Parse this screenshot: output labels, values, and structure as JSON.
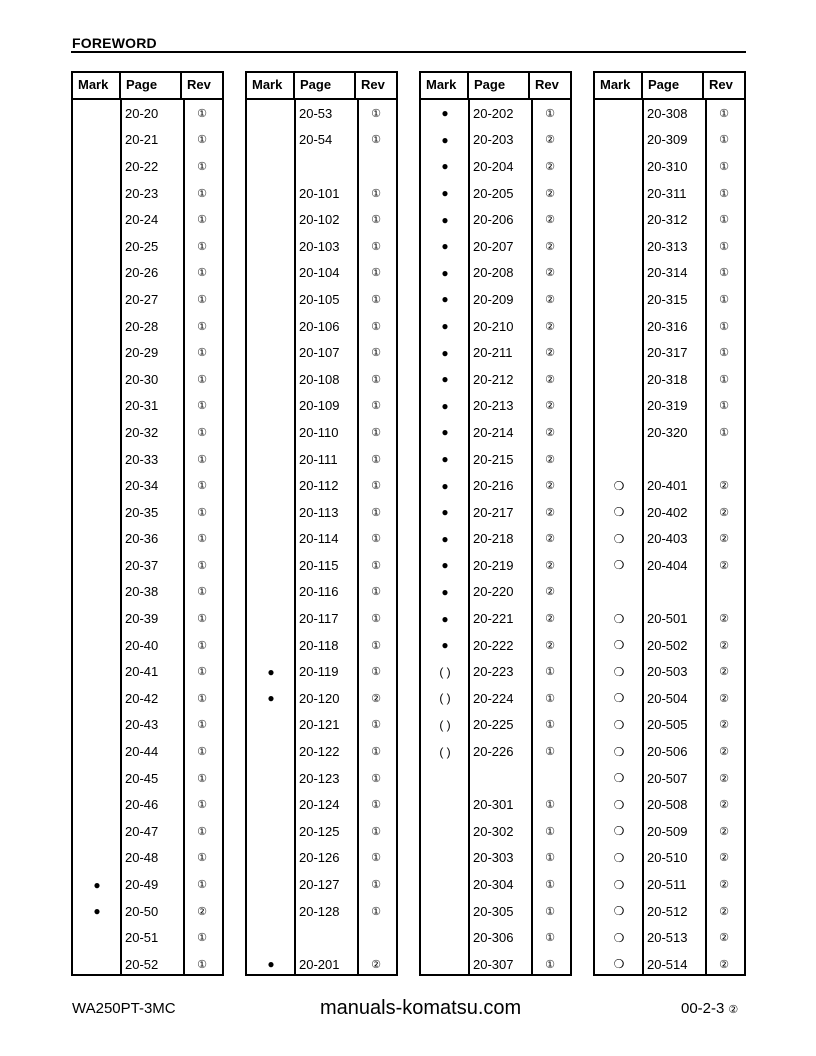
{
  "header": {
    "title": "FOREWORD"
  },
  "watermark": "manuals-komatsu.com",
  "table_headers": {
    "mark": "Mark",
    "page": "Page",
    "rev": "Rev"
  },
  "columns": [
    [
      [
        "",
        "20-20",
        "①"
      ],
      [
        "",
        "20-21",
        "①"
      ],
      [
        "",
        "20-22",
        "①"
      ],
      [
        "",
        "20-23",
        "①"
      ],
      [
        "",
        "20-24",
        "①"
      ],
      [
        "",
        "20-25",
        "①"
      ],
      [
        "",
        "20-26",
        "①"
      ],
      [
        "",
        "20-27",
        "①"
      ],
      [
        "",
        "20-28",
        "①"
      ],
      [
        "",
        "20-29",
        "①"
      ],
      [
        "",
        "20-30",
        "①"
      ],
      [
        "",
        "20-31",
        "①"
      ],
      [
        "",
        "20-32",
        "①"
      ],
      [
        "",
        "20-33",
        "①"
      ],
      [
        "",
        "20-34",
        "①"
      ],
      [
        "",
        "20-35",
        "①"
      ],
      [
        "",
        "20-36",
        "①"
      ],
      [
        "",
        "20-37",
        "①"
      ],
      [
        "",
        "20-38",
        "①"
      ],
      [
        "",
        "20-39",
        "①"
      ],
      [
        "",
        "20-40",
        "①"
      ],
      [
        "",
        "20-41",
        "①"
      ],
      [
        "",
        "20-42",
        "①"
      ],
      [
        "",
        "20-43",
        "①"
      ],
      [
        "",
        "20-44",
        "①"
      ],
      [
        "",
        "20-45",
        "①"
      ],
      [
        "",
        "20-46",
        "①"
      ],
      [
        "",
        "20-47",
        "①"
      ],
      [
        "",
        "20-48",
        "①"
      ],
      [
        "●",
        "20-49",
        "①"
      ],
      [
        "●",
        "20-50",
        "②"
      ],
      [
        "",
        "20-51",
        "①"
      ],
      [
        "",
        "20-52",
        "①"
      ]
    ],
    [
      [
        "",
        "20-53",
        "①"
      ],
      [
        "",
        "20-54",
        "①"
      ],
      [
        "",
        "",
        ""
      ],
      [
        "",
        "20-101",
        "①"
      ],
      [
        "",
        "20-102",
        "①"
      ],
      [
        "",
        "20-103",
        "①"
      ],
      [
        "",
        "20-104",
        "①"
      ],
      [
        "",
        "20-105",
        "①"
      ],
      [
        "",
        "20-106",
        "①"
      ],
      [
        "",
        "20-107",
        "①"
      ],
      [
        "",
        "20-108",
        "①"
      ],
      [
        "",
        "20-109",
        "①"
      ],
      [
        "",
        "20-110",
        "①"
      ],
      [
        "",
        "20-111",
        "①"
      ],
      [
        "",
        "20-112",
        "①"
      ],
      [
        "",
        "20-113",
        "①"
      ],
      [
        "",
        "20-114",
        "①"
      ],
      [
        "",
        "20-115",
        "①"
      ],
      [
        "",
        "20-116",
        "①"
      ],
      [
        "",
        "20-117",
        "①"
      ],
      [
        "",
        "20-118",
        "①"
      ],
      [
        "●",
        "20-119",
        "①"
      ],
      [
        "●",
        "20-120",
        "②"
      ],
      [
        "",
        "20-121",
        "①"
      ],
      [
        "",
        "20-122",
        "①"
      ],
      [
        "",
        "20-123",
        "①"
      ],
      [
        "",
        "20-124",
        "①"
      ],
      [
        "",
        "20-125",
        "①"
      ],
      [
        "",
        "20-126",
        "①"
      ],
      [
        "",
        "20-127",
        "①"
      ],
      [
        "",
        "20-128",
        "①"
      ],
      [
        "",
        "",
        ""
      ],
      [
        "●",
        "20-201",
        "②"
      ]
    ],
    [
      [
        "●",
        "20-202",
        "①"
      ],
      [
        "●",
        "20-203",
        "②"
      ],
      [
        "●",
        "20-204",
        "②"
      ],
      [
        "●",
        "20-205",
        "②"
      ],
      [
        "●",
        "20-206",
        "②"
      ],
      [
        "●",
        "20-207",
        "②"
      ],
      [
        "●",
        "20-208",
        "②"
      ],
      [
        "●",
        "20-209",
        "②"
      ],
      [
        "●",
        "20-210",
        "②"
      ],
      [
        "●",
        "20-211",
        "②"
      ],
      [
        "●",
        "20-212",
        "②"
      ],
      [
        "●",
        "20-213",
        "②"
      ],
      [
        "●",
        "20-214",
        "②"
      ],
      [
        "●",
        "20-215",
        "②"
      ],
      [
        "●",
        "20-216",
        "②"
      ],
      [
        "●",
        "20-217",
        "②"
      ],
      [
        "●",
        "20-218",
        "②"
      ],
      [
        "●",
        "20-219",
        "②"
      ],
      [
        "●",
        "20-220",
        "②"
      ],
      [
        "●",
        "20-221",
        "②"
      ],
      [
        "●",
        "20-222",
        "②"
      ],
      [
        "( )",
        "20-223",
        "①"
      ],
      [
        "( )",
        "20-224",
        "①"
      ],
      [
        "( )",
        "20-225",
        "①"
      ],
      [
        "( )",
        "20-226",
        "①"
      ],
      [
        "",
        "",
        ""
      ],
      [
        "",
        "20-301",
        "①"
      ],
      [
        "",
        "20-302",
        "①"
      ],
      [
        "",
        "20-303",
        "①"
      ],
      [
        "",
        "20-304",
        "①"
      ],
      [
        "",
        "20-305",
        "①"
      ],
      [
        "",
        "20-306",
        "①"
      ],
      [
        "",
        "20-307",
        "①"
      ]
    ],
    [
      [
        "",
        "20-308",
        "①"
      ],
      [
        "",
        "20-309",
        "①"
      ],
      [
        "",
        "20-310",
        "①"
      ],
      [
        "",
        "20-311",
        "①"
      ],
      [
        "",
        "20-312",
        "①"
      ],
      [
        "",
        "20-313",
        "①"
      ],
      [
        "",
        "20-314",
        "①"
      ],
      [
        "",
        "20-315",
        "①"
      ],
      [
        "",
        "20-316",
        "①"
      ],
      [
        "",
        "20-317",
        "①"
      ],
      [
        "",
        "20-318",
        "①"
      ],
      [
        "",
        "20-319",
        "①"
      ],
      [
        "",
        "20-320",
        "①"
      ],
      [
        "",
        "",
        ""
      ],
      [
        "❍",
        "20-401",
        "②"
      ],
      [
        "❍",
        "20-402",
        "②"
      ],
      [
        "❍",
        "20-403",
        "②"
      ],
      [
        "❍",
        "20-404",
        "②"
      ],
      [
        "",
        "",
        ""
      ],
      [
        "❍",
        "20-501",
        "②"
      ],
      [
        "❍",
        "20-502",
        "②"
      ],
      [
        "❍",
        "20-503",
        "②"
      ],
      [
        "❍",
        "20-504",
        "②"
      ],
      [
        "❍",
        "20-505",
        "②"
      ],
      [
        "❍",
        "20-506",
        "②"
      ],
      [
        "❍",
        "20-507",
        "②"
      ],
      [
        "❍",
        "20-508",
        "②"
      ],
      [
        "❍",
        "20-509",
        "②"
      ],
      [
        "❍",
        "20-510",
        "②"
      ],
      [
        "❍",
        "20-511",
        "②"
      ],
      [
        "❍",
        "20-512",
        "②"
      ],
      [
        "❍",
        "20-513",
        "②"
      ],
      [
        "❍",
        "20-514",
        "②"
      ]
    ]
  ],
  "footer": {
    "model": "WA250PT-3MC",
    "page": "00-2-3",
    "rev": "②"
  }
}
